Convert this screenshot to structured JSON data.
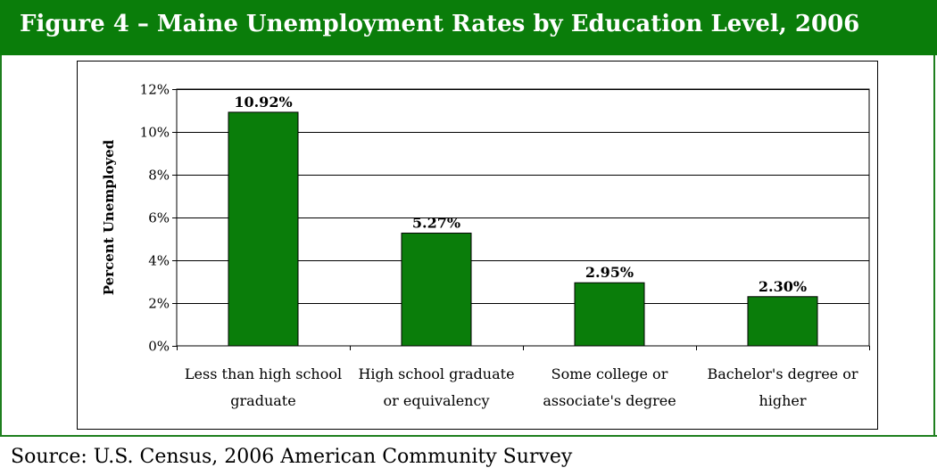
{
  "header": {
    "title": "Figure 4 – Maine Unemployment Rates by Education Level, 2006"
  },
  "footer": {
    "source": "Source: U.S. Census, 2006 American Community Survey"
  },
  "colors": {
    "header_background": "#0a7d0a",
    "bar_fill": "#0a7d0a",
    "bar_stroke": "#000000",
    "frame": "#1e7f1e"
  },
  "chart_data": {
    "type": "bar",
    "title": "",
    "xlabel": "",
    "ylabel": "Percent Unemployed",
    "categories": [
      [
        "Less than high school",
        "graduate"
      ],
      [
        "High school graduate",
        "or equivalency"
      ],
      [
        "Some college or",
        "associate's degree"
      ],
      [
        "Bachelor's degree or",
        "higher"
      ]
    ],
    "values": [
      10.92,
      5.27,
      2.95,
      2.3
    ],
    "data_labels": [
      "10.92%",
      "5.27%",
      "2.95%",
      "2.30%"
    ],
    "ylim": [
      0,
      12
    ],
    "y_ticks": [
      0,
      2,
      4,
      6,
      8,
      10,
      12
    ],
    "y_tick_labels": [
      "0%",
      "2%",
      "4%",
      "6%",
      "8%",
      "10%",
      "12%"
    ],
    "grid": true,
    "legend": "none"
  }
}
